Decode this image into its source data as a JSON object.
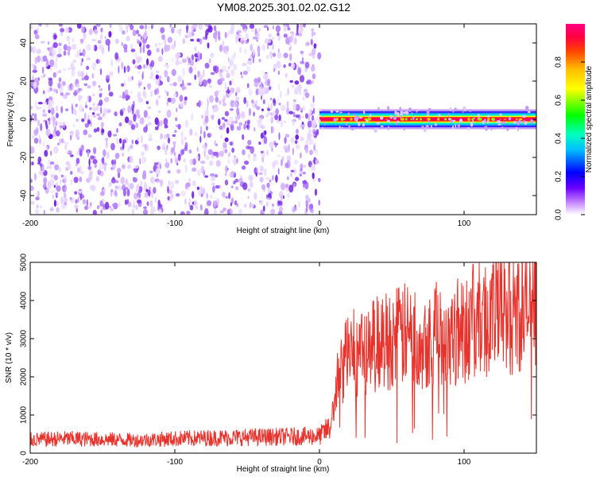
{
  "title": "YM08.2025.301.02.02.G12",
  "chart_data": [
    {
      "type": "heatmap",
      "xlabel": "Height of straight line (km)",
      "ylabel": "Frequency (Hz)",
      "xlim": [
        -200,
        150
      ],
      "ylim": [
        -50,
        50
      ],
      "xticks": [
        -200,
        -100,
        0,
        100
      ],
      "yticks": [
        -40,
        -20,
        0,
        20,
        40
      ],
      "colorbar": {
        "label": "Normalized spectral amplitude",
        "range": [
          0,
          1
        ],
        "ticks": [
          "0.0",
          "0.2",
          "0.4",
          "0.6",
          "0.8"
        ],
        "tick_values": [
          0,
          0.2,
          0.4,
          0.6,
          0.8
        ]
      },
      "regions": [
        {
          "x_range": [
            -200,
            0
          ],
          "description_values": {
            "amplitude_range": [
              0.05,
              0.25
            ],
            "frequency_range": [
              -50,
              50
            ]
          }
        },
        {
          "x_range": [
            0,
            150
          ],
          "description_values": {
            "center_frequency": 0,
            "band_halfwidth": 2,
            "peak_amplitude": 1.0
          }
        }
      ]
    },
    {
      "type": "line",
      "xlabel": "Height of straight line (km)",
      "ylabel": "SNR (10 * v/v)",
      "xlim": [
        -200,
        150
      ],
      "ylim": [
        0,
        5000
      ],
      "xticks": [
        -200,
        -100,
        0,
        100
      ],
      "yticks": [
        0,
        1000,
        2000,
        3000,
        4000,
        5000
      ],
      "series": [
        {
          "color": "#e8322c",
          "x": [
            -200,
            -175,
            -150,
            -125,
            -100,
            -75,
            -50,
            -25,
            0,
            8,
            12,
            20,
            30,
            40,
            50,
            60,
            70,
            80,
            90,
            100,
            110,
            120,
            130,
            140,
            150
          ],
          "y": [
            350,
            380,
            360,
            340,
            380,
            400,
            420,
            430,
            450,
            700,
            1800,
            2700,
            2600,
            2900,
            3000,
            3100,
            3000,
            3100,
            3150,
            3300,
            3500,
            3600,
            3700,
            3750,
            3800
          ]
        }
      ]
    }
  ]
}
